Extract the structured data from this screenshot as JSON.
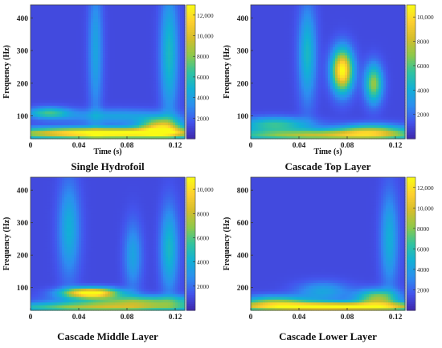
{
  "chart_data": [
    {
      "type": "heatmap",
      "title": "Single Hydrofoil",
      "xlabel": "Time (s)",
      "ylabel": "Frequency (Hz)",
      "xlim": [
        0,
        0.128
      ],
      "ylim": [
        30,
        440
      ],
      "x_ticks": [
        "0",
        "0.04",
        "0.08",
        "0.12"
      ],
      "x_tick_values": [
        0,
        0.04,
        0.08,
        0.12
      ],
      "y_ticks": [
        "100",
        "200",
        "300",
        "400"
      ],
      "y_tick_values": [
        100,
        200,
        300,
        400
      ],
      "colorbar_range": [
        0,
        13000
      ],
      "colorbar_ticks": [
        "2000",
        "4000",
        "6000",
        "8000",
        "10,000",
        "12,000"
      ],
      "colorbar_tick_values": [
        2000,
        4000,
        6000,
        8000,
        10000,
        12000
      ],
      "colormap": [
        "#3e26a8",
        "#4353ec",
        "#2d8ef0",
        "#12b0d6",
        "#30c3a0",
        "#8cc94b",
        "#d4bd2c",
        "#fdcf30",
        "#f9fb15"
      ],
      "hot_spots": [
        {
          "t": 0.064,
          "f": 48,
          "intensity": 12500,
          "t_spread": 0.06,
          "f_spread": 12
        },
        {
          "t": 0.108,
          "f": 70,
          "intensity": 8200,
          "t_spread": 0.012,
          "f_spread": 18
        },
        {
          "t": 0.015,
          "f": 110,
          "intensity": 5200,
          "t_spread": 0.012,
          "f_spread": 12
        },
        {
          "t": 0.115,
          "f": 290,
          "intensity": 4200,
          "t_spread": 0.005,
          "f_spread": 130
        },
        {
          "t": 0.054,
          "f": 300,
          "intensity": 3000,
          "t_spread": 0.004,
          "f_spread": 140
        },
        {
          "t": 0.07,
          "f": 100,
          "intensity": 3000,
          "t_spread": 0.03,
          "f_spread": 15
        }
      ]
    },
    {
      "type": "heatmap",
      "title": "Cascade Top Layer",
      "xlabel": "Time (s)",
      "ylabel": "Frequency (Hz)",
      "xlim": [
        0,
        0.128
      ],
      "ylim": [
        30,
        440
      ],
      "x_ticks": [
        "0",
        "0.04",
        "0.08",
        "0.12"
      ],
      "x_tick_values": [
        0,
        0.04,
        0.08,
        0.12
      ],
      "y_ticks": [
        "100",
        "200",
        "300",
        "400"
      ],
      "y_tick_values": [
        100,
        200,
        300,
        400
      ],
      "colorbar_range": [
        0,
        11000
      ],
      "colorbar_ticks": [
        "2000",
        "4000",
        "6000",
        "8000",
        "10,000"
      ],
      "colorbar_tick_values": [
        2000,
        4000,
        6000,
        8000,
        10000
      ],
      "colormap": [
        "#3e26a8",
        "#4353ec",
        "#2d8ef0",
        "#12b0d6",
        "#30c3a0",
        "#8cc94b",
        "#d4bd2c",
        "#fdcf30",
        "#f9fb15"
      ],
      "hot_spots": [
        {
          "t": 0.076,
          "f": 240,
          "intensity": 10000,
          "t_spread": 0.006,
          "f_spread": 45
        },
        {
          "t": 0.102,
          "f": 200,
          "intensity": 6000,
          "t_spread": 0.005,
          "f_spread": 40
        },
        {
          "t": 0.06,
          "f": 42,
          "intensity": 6500,
          "t_spread": 0.06,
          "f_spread": 12
        },
        {
          "t": 0.047,
          "f": 290,
          "intensity": 3500,
          "t_spread": 0.005,
          "f_spread": 100
        },
        {
          "t": 0.02,
          "f": 75,
          "intensity": 4500,
          "t_spread": 0.02,
          "f_spread": 15
        },
        {
          "t": 0.1,
          "f": 55,
          "intensity": 5000,
          "t_spread": 0.02,
          "f_spread": 15
        }
      ]
    },
    {
      "type": "heatmap",
      "title": "Cascade Middle Layer",
      "xlabel": "",
      "ylabel": "Frequency (Hz)",
      "xlim": [
        0,
        0.128
      ],
      "ylim": [
        30,
        440
      ],
      "x_ticks": [
        "0",
        "0.04",
        "0.08",
        "0.12"
      ],
      "x_tick_values": [
        0,
        0.04,
        0.08,
        0.12
      ],
      "y_ticks": [
        "100",
        "200",
        "300",
        "400"
      ],
      "y_tick_values": [
        100,
        200,
        300,
        400
      ],
      "colorbar_range": [
        0,
        11000
      ],
      "colorbar_ticks": [
        "2000",
        "4000",
        "6000",
        "8000",
        "10,000"
      ],
      "colorbar_tick_values": [
        2000,
        4000,
        6000,
        8000,
        10000
      ],
      "colormap": [
        "#3e26a8",
        "#4353ec",
        "#2d8ef0",
        "#12b0d6",
        "#30c3a0",
        "#8cc94b",
        "#d4bd2c",
        "#fdcf30",
        "#f9fb15"
      ],
      "hot_spots": [
        {
          "t": 0.05,
          "f": 85,
          "intensity": 10500,
          "t_spread": 0.016,
          "f_spread": 11
        },
        {
          "t": 0.09,
          "f": 60,
          "intensity": 5000,
          "t_spread": 0.04,
          "f_spread": 12
        },
        {
          "t": 0.06,
          "f": 40,
          "intensity": 6000,
          "t_spread": 0.06,
          "f_spread": 10
        },
        {
          "t": 0.032,
          "f": 280,
          "intensity": 3000,
          "t_spread": 0.006,
          "f_spread": 100
        },
        {
          "t": 0.115,
          "f": 220,
          "intensity": 3500,
          "t_spread": 0.005,
          "f_spread": 90
        },
        {
          "t": 0.085,
          "f": 200,
          "intensity": 2500,
          "t_spread": 0.005,
          "f_spread": 70
        }
      ]
    },
    {
      "type": "heatmap",
      "title": "Cascade Lower Layer",
      "xlabel": "",
      "ylabel": "Frequency (Hz)",
      "xlim": [
        0,
        0.128
      ],
      "ylim": [
        60,
        880
      ],
      "x_ticks": [
        "0",
        "0.04",
        "0.08",
        "0.12"
      ],
      "x_tick_values": [
        0,
        0.04,
        0.08,
        0.12
      ],
      "y_ticks": [
        "200",
        "400",
        "600",
        "800"
      ],
      "y_tick_values": [
        200,
        400,
        600,
        800
      ],
      "colorbar_range": [
        0,
        13000
      ],
      "colorbar_ticks": [
        "2000",
        "4000",
        "6000",
        "8000",
        "10,000",
        "12,000"
      ],
      "colorbar_tick_values": [
        2000,
        4000,
        6000,
        8000,
        10000,
        12000
      ],
      "colormap": [
        "#3e26a8",
        "#4353ec",
        "#2d8ef0",
        "#12b0d6",
        "#30c3a0",
        "#8cc94b",
        "#d4bd2c",
        "#fdcf30",
        "#f9fb15"
      ],
      "hot_spots": [
        {
          "t": 0.064,
          "f": 85,
          "intensity": 12000,
          "t_spread": 0.064,
          "f_spread": 20
        },
        {
          "t": 0.105,
          "f": 140,
          "intensity": 7000,
          "t_spread": 0.012,
          "f_spread": 35
        },
        {
          "t": 0.02,
          "f": 120,
          "intensity": 5000,
          "t_spread": 0.02,
          "f_spread": 25
        },
        {
          "t": 0.115,
          "f": 500,
          "intensity": 3500,
          "t_spread": 0.005,
          "f_spread": 200
        },
        {
          "t": 0.06,
          "f": 180,
          "intensity": 3000,
          "t_spread": 0.015,
          "f_spread": 40
        }
      ]
    }
  ]
}
